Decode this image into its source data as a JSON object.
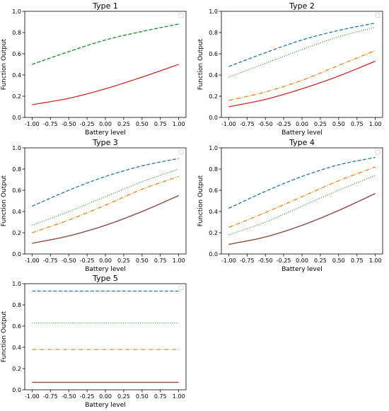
{
  "chart_data": [
    {
      "type": "line",
      "title": "Type 1",
      "xlabel": "Battery level",
      "ylabel": "Function Output",
      "xlim": [
        -1.1,
        1.1
      ],
      "ylim": [
        0,
        1
      ],
      "xticks": [
        "-1.00",
        "-0.75",
        "-0.50",
        "-0.25",
        "0.00",
        "0.25",
        "0.50",
        "0.75",
        "1.00"
      ],
      "yticks": [
        "0.0",
        "0.2",
        "0.4",
        "0.6",
        "0.8",
        "1.0"
      ],
      "legend": "top-right (empty)",
      "grid": false,
      "series": [
        {
          "color": "#1f77b4",
          "style": "dashed",
          "x": [
            -1,
            -0.5,
            0,
            0.5,
            1
          ],
          "y": [
            0.5,
            0.62,
            0.73,
            0.81,
            0.88
          ]
        },
        {
          "color": "#2ca02c",
          "style": "dashed",
          "x": [
            -1,
            -0.5,
            0,
            0.5,
            1
          ],
          "y": [
            0.5,
            0.62,
            0.73,
            0.81,
            0.88
          ]
        },
        {
          "color": "#d62728",
          "style": "solid",
          "x": [
            -1,
            -0.5,
            0,
            0.5,
            1
          ],
          "y": [
            0.12,
            0.18,
            0.27,
            0.38,
            0.5
          ]
        }
      ]
    },
    {
      "type": "line",
      "title": "Type 2",
      "xlabel": "Battery level",
      "ylabel": "Function Output",
      "xlim": [
        -1.1,
        1.1
      ],
      "ylim": [
        0,
        1
      ],
      "xticks": [
        "-1.00",
        "-0.75",
        "-0.50",
        "-0.25",
        "0.00",
        "0.25",
        "0.50",
        "0.75",
        "1.00"
      ],
      "yticks": [
        "0.0",
        "0.2",
        "0.4",
        "0.6",
        "0.8",
        "1.0"
      ],
      "legend": "top-right (empty)",
      "grid": false,
      "series": [
        {
          "color": "#1f77b4",
          "style": "dashed",
          "x": [
            -1,
            -0.5,
            0,
            0.5,
            1
          ],
          "y": [
            0.48,
            0.61,
            0.73,
            0.82,
            0.89
          ]
        },
        {
          "color": "#2ca02c",
          "style": "dotted",
          "x": [
            -1,
            -0.5,
            0,
            0.5,
            1
          ],
          "y": [
            0.38,
            0.51,
            0.64,
            0.76,
            0.85
          ]
        },
        {
          "color": "#ff7f0e",
          "style": "dashdot",
          "x": [
            -1,
            -0.5,
            0,
            0.5,
            1
          ],
          "y": [
            0.16,
            0.24,
            0.35,
            0.49,
            0.63
          ]
        },
        {
          "color": "#d62728",
          "style": "solid",
          "x": [
            -1,
            -0.5,
            0,
            0.5,
            1
          ],
          "y": [
            0.1,
            0.17,
            0.27,
            0.39,
            0.53
          ]
        }
      ]
    },
    {
      "type": "line",
      "title": "Type 3",
      "xlabel": "Battery level",
      "ylabel": "Function Output",
      "xlim": [
        -1.1,
        1.1
      ],
      "ylim": [
        0,
        1
      ],
      "xticks": [
        "-1.00",
        "-0.75",
        "-0.50",
        "-0.25",
        "0.00",
        "0.25",
        "0.50",
        "0.75",
        "1.00"
      ],
      "yticks": [
        "0.0",
        "0.2",
        "0.4",
        "0.6",
        "0.8",
        "1.0"
      ],
      "legend": "top-right (empty)",
      "grid": false,
      "series": [
        {
          "color": "#1f77b4",
          "style": "dashed",
          "x": [
            -1,
            -0.5,
            0,
            0.5,
            1
          ],
          "y": [
            0.45,
            0.6,
            0.73,
            0.83,
            0.9
          ]
        },
        {
          "color": "#2ca02c",
          "style": "dotted",
          "x": [
            -1,
            -0.5,
            0,
            0.5,
            1
          ],
          "y": [
            0.27,
            0.4,
            0.54,
            0.68,
            0.8
          ]
        },
        {
          "color": "#ff7f0e",
          "style": "dashdot",
          "x": [
            -1,
            -0.5,
            0,
            0.5,
            1
          ],
          "y": [
            0.2,
            0.32,
            0.46,
            0.61,
            0.73
          ]
        },
        {
          "color": "#d62728",
          "style": "solid",
          "x": [
            -1,
            -0.5,
            0,
            0.5,
            1
          ],
          "y": [
            0.1,
            0.17,
            0.27,
            0.4,
            0.55
          ]
        },
        {
          "color": "#8c564b",
          "style": "solid",
          "x": [
            -1,
            -0.5,
            0,
            0.5,
            1
          ],
          "y": [
            0.1,
            0.17,
            0.27,
            0.4,
            0.55
          ]
        }
      ]
    },
    {
      "type": "line",
      "title": "Type 4",
      "xlabel": "Battery level",
      "ylabel": "Function Output",
      "xlim": [
        -1.1,
        1.1
      ],
      "ylim": [
        0,
        1
      ],
      "xticks": [
        "-1.00",
        "-0.75",
        "-0.50",
        "-0.25",
        "0.00",
        "0.25",
        "0.50",
        "0.75",
        "1.00"
      ],
      "yticks": [
        "0.0",
        "0.2",
        "0.4",
        "0.6",
        "0.8",
        "1.0"
      ],
      "legend": "top-right (empty)",
      "grid": false,
      "series": [
        {
          "color": "#1f77b4",
          "style": "dashed",
          "x": [
            -1,
            -0.5,
            0,
            0.5,
            1
          ],
          "y": [
            0.43,
            0.59,
            0.73,
            0.84,
            0.91
          ]
        },
        {
          "color": "#ff7f0e",
          "style": "dashdot",
          "x": [
            -1,
            -0.5,
            0,
            0.5,
            1
          ],
          "y": [
            0.25,
            0.39,
            0.54,
            0.69,
            0.82
          ]
        },
        {
          "color": "#2ca02c",
          "style": "dotted",
          "x": [
            -1,
            -0.5,
            0,
            0.5,
            1
          ],
          "y": [
            0.18,
            0.3,
            0.45,
            0.6,
            0.74
          ]
        },
        {
          "color": "#d62728",
          "style": "solid",
          "x": [
            -1,
            -0.5,
            0,
            0.5,
            1
          ],
          "y": [
            0.09,
            0.16,
            0.27,
            0.41,
            0.57
          ]
        },
        {
          "color": "#8c564b",
          "style": "solid",
          "x": [
            -1,
            -0.5,
            0,
            0.5,
            1
          ],
          "y": [
            0.09,
            0.16,
            0.27,
            0.41,
            0.57
          ]
        }
      ]
    },
    {
      "type": "line",
      "title": "Type 5",
      "xlabel": "Battery level",
      "ylabel": "Function Output",
      "xlim": [
        -1.1,
        1.1
      ],
      "ylim": [
        0,
        1
      ],
      "xticks": [
        "-1.00",
        "-0.75",
        "-0.50",
        "-0.25",
        "0.00",
        "0.25",
        "0.50",
        "0.75",
        "1.00"
      ],
      "yticks": [
        "0.0",
        "0.2",
        "0.4",
        "0.6",
        "0.8",
        "1.0"
      ],
      "legend": "top-right (empty)",
      "grid": false,
      "series": [
        {
          "color": "#1f77b4",
          "style": "dashed",
          "x": [
            -1,
            1
          ],
          "y": [
            0.93,
            0.93
          ]
        },
        {
          "color": "#2ca02c",
          "style": "dotted",
          "x": [
            -1,
            1
          ],
          "y": [
            0.63,
            0.63
          ]
        },
        {
          "color": "#ff7f0e",
          "style": "dashdot",
          "x": [
            -1,
            1
          ],
          "y": [
            0.38,
            0.38
          ]
        },
        {
          "color": "#bcbd22",
          "style": "dashdot",
          "x": [
            -1,
            1
          ],
          "y": [
            0.38,
            0.38
          ]
        },
        {
          "color": "#d62728",
          "style": "solid",
          "x": [
            -1,
            1
          ],
          "y": [
            0.07,
            0.07
          ]
        },
        {
          "color": "#8c564b",
          "style": "solid",
          "x": [
            -1,
            1
          ],
          "y": [
            0.07,
            0.07
          ]
        }
      ]
    }
  ]
}
